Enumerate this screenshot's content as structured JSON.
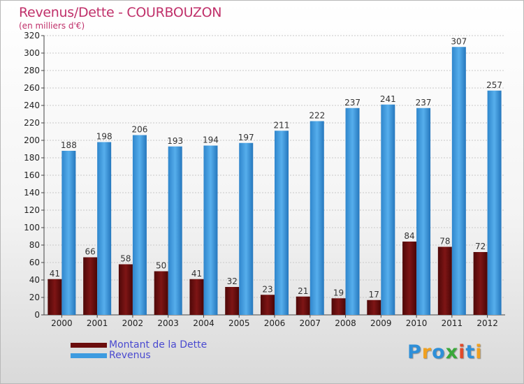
{
  "title": "Revenus/Dette - COURBOUZON",
  "subtitle": "(en milliers d'€)",
  "logo": {
    "text": "Proxiti",
    "letters": [
      {
        "ch": "P",
        "color": "#2e8fd8"
      },
      {
        "ch": "r",
        "color": "#f0a020"
      },
      {
        "ch": "o",
        "color": "#2e8fd8"
      },
      {
        "ch": "x",
        "color": "#3aa83a"
      },
      {
        "ch": "i",
        "color": "#e04a2a"
      },
      {
        "ch": "t",
        "color": "#2e8fd8"
      },
      {
        "ch": "i",
        "color": "#f0a020"
      }
    ]
  },
  "legend": [
    {
      "label": "Montant de la Dette",
      "color": "#6b0d0d"
    },
    {
      "label": "Revenus",
      "color": "#3d9be0"
    }
  ],
  "chart_data": {
    "type": "bar",
    "title": "Revenus/Dette - COURBOUZON",
    "subtitle": "(en milliers d'€)",
    "xlabel": "",
    "ylabel": "",
    "categories": [
      "2000",
      "2001",
      "2002",
      "2003",
      "2004",
      "2005",
      "2006",
      "2007",
      "2008",
      "2009",
      "2010",
      "2011",
      "2012"
    ],
    "series": [
      {
        "name": "Montant de la Dette",
        "color": "#6b0d0d",
        "values": [
          41,
          66,
          58,
          50,
          41,
          32,
          23,
          21,
          19,
          17,
          84,
          78,
          72
        ]
      },
      {
        "name": "Revenus",
        "color": "#3d9be0",
        "values": [
          188,
          198,
          206,
          193,
          194,
          197,
          211,
          222,
          237,
          241,
          237,
          307,
          257
        ]
      }
    ],
    "ylim": [
      0,
      320
    ],
    "yticks": [
      0,
      20,
      40,
      60,
      80,
      100,
      120,
      140,
      160,
      180,
      200,
      220,
      240,
      260,
      280,
      300,
      320
    ],
    "grid": true,
    "legend_position": "bottom-left"
  }
}
